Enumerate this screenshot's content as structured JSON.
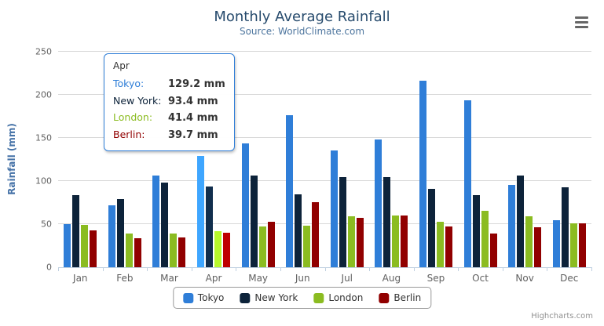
{
  "header": {
    "title": "Monthly Average Rainfall",
    "subtitle": "Source: WorldClimate.com"
  },
  "y_axis": {
    "title": "Rainfall (mm)",
    "ticks": [
      0,
      50,
      100,
      150,
      200,
      250
    ]
  },
  "chart_data": {
    "type": "bar",
    "title": "Monthly Average Rainfall",
    "subtitle": "Source: WorldClimate.com",
    "categories": [
      "Jan",
      "Feb",
      "Mar",
      "Apr",
      "May",
      "Jun",
      "Jul",
      "Aug",
      "Sep",
      "Oct",
      "Nov",
      "Dec"
    ],
    "series": [
      {
        "name": "Tokyo",
        "color": "#2f7ed8",
        "values": [
          49.9,
          71.5,
          106.4,
          129.2,
          144.0,
          176.0,
          135.6,
          148.5,
          216.4,
          194.1,
          95.6,
          54.4
        ]
      },
      {
        "name": "New York",
        "color": "#0d233a",
        "values": [
          83.6,
          78.8,
          98.5,
          93.4,
          106.0,
          84.5,
          105.0,
          104.3,
          91.2,
          83.5,
          106.6,
          92.3
        ]
      },
      {
        "name": "London",
        "color": "#8bbc21",
        "values": [
          48.9,
          38.8,
          39.3,
          41.4,
          47.0,
          48.3,
          59.0,
          59.6,
          52.4,
          65.2,
          59.3,
          51.2
        ]
      },
      {
        "name": "Berlin",
        "color": "#910000",
        "values": [
          42.4,
          33.2,
          34.5,
          39.7,
          52.6,
          75.5,
          57.4,
          60.4,
          47.6,
          39.1,
          46.8,
          51.1
        ]
      }
    ],
    "xlabel": "",
    "ylabel": "Rainfall (mm)",
    "ylim": [
      0,
      250
    ],
    "grid": true,
    "legend_position": "bottom",
    "hovered_category": "Apr"
  },
  "tooltip": {
    "header": "Apr",
    "border_color": "#2f7ed8",
    "rows": [
      {
        "label": "Tokyo:",
        "value": "129.2 mm",
        "color": "#2f7ed8"
      },
      {
        "label": "New York:",
        "value": "93.4 mm",
        "color": "#0d233a"
      },
      {
        "label": "London:",
        "value": "41.4 mm",
        "color": "#8bbc21"
      },
      {
        "label": "Berlin:",
        "value": "39.7 mm",
        "color": "#910000"
      }
    ]
  },
  "credits": {
    "label": "Highcharts.com"
  },
  "colors": {
    "title_text": "#274b6d",
    "subtitle_text": "#4d759e",
    "axis_label_text": "#606060",
    "y_title_text": "#4572a7",
    "axis_line": "#c0d0e0",
    "gridline": "#d8d8d8",
    "legend_text": "#333333",
    "credits_text": "#909090"
  }
}
